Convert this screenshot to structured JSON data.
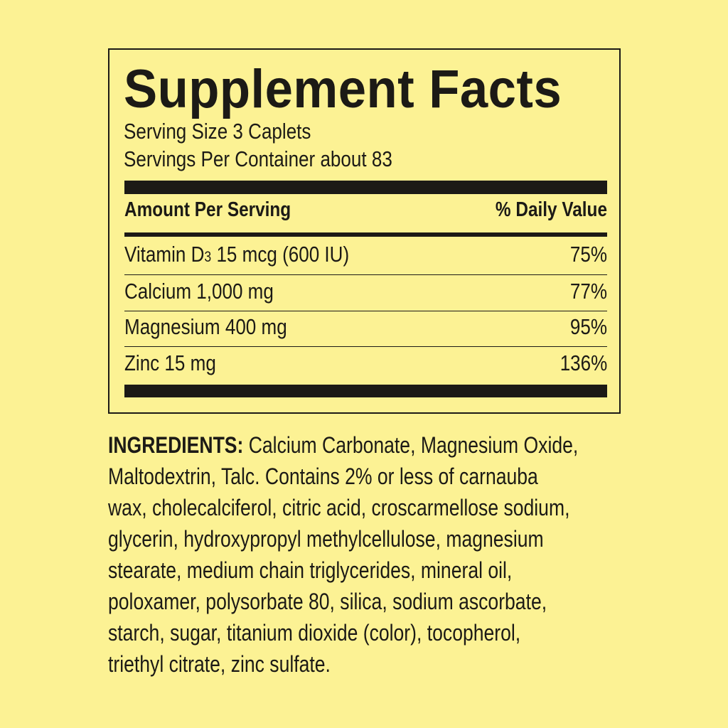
{
  "label": {
    "title": "Supplement Facts",
    "serving_size": "Serving Size 3 Caplets",
    "servings_per_container": "Servings Per Container about 83",
    "header_left": "Amount Per Serving",
    "header_right": "% Daily Value",
    "rows": [
      {
        "name_a": "Vitamin D",
        "name_sub": "3",
        "name_b": " 15 mcg (600 IU)",
        "dv": "75%"
      },
      {
        "name_a": "Calcium 1,000 mg",
        "name_sub": "",
        "name_b": "",
        "dv": "77%"
      },
      {
        "name_a": "Magnesium 400 mg",
        "name_sub": "",
        "name_b": "",
        "dv": "95%"
      },
      {
        "name_a": "Zinc 15 mg",
        "name_sub": "",
        "name_b": "",
        "dv": "136%"
      }
    ]
  },
  "ingredients": {
    "label": "INGREDIENTS:",
    "lines": [
      " Calcium Carbonate, Magnesium Oxide,",
      "Maltodextrin, Talc. Contains 2% or less of carnauba",
      "wax, cholecalciferol, citric acid, croscarmellose sodium,",
      "glycerin, hydroxypropyl methylcellulose, magnesium",
      "stearate, medium chain triglycerides, mineral oil,",
      "poloxamer, polysorbate 80, silica, sodium ascorbate,",
      "starch, sugar, titanium dioxide (color), tocopherol,",
      "triethyl citrate, zinc sulfate."
    ]
  },
  "colors": {
    "background": "#fcf294",
    "ink": "#1c1a16"
  }
}
